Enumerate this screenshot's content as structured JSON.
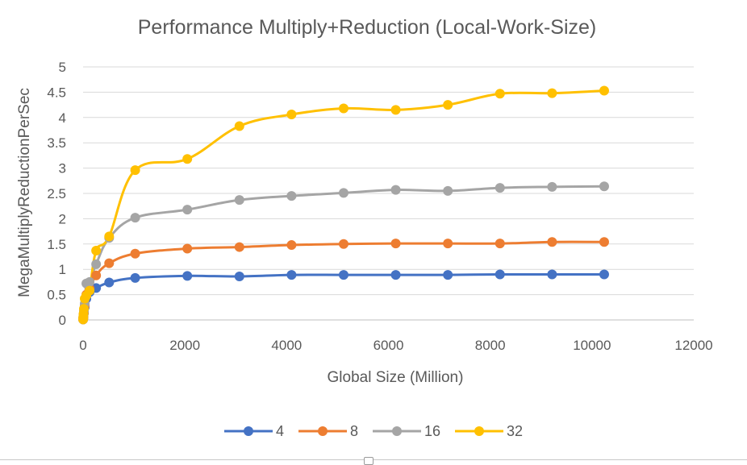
{
  "chart_data": {
    "type": "line",
    "title": "Performance Multiply+Reduction (Local-Work-Size)",
    "xlabel": "Global Size (Million)",
    "ylabel": "MegaMultiplyReductionPerSec",
    "xlim": [
      0,
      12000
    ],
    "ylim": [
      0,
      5
    ],
    "xticks": [
      0,
      2000,
      4000,
      6000,
      8000,
      10000,
      12000
    ],
    "yticks": [
      0,
      0.5,
      1,
      1.5,
      2,
      2.5,
      3,
      3.5,
      4,
      4.5,
      5
    ],
    "grid": true,
    "legend_position": "bottom",
    "x": [
      1,
      2,
      4,
      8,
      16,
      32,
      64,
      128,
      256,
      512,
      1024,
      2048,
      3072,
      4096,
      5120,
      6144,
      7168,
      8192,
      9216,
      10240
    ],
    "series": [
      {
        "name": "4",
        "color": "#4472c4",
        "values": [
          0.01,
          0.02,
          0.04,
          0.07,
          0.13,
          0.25,
          0.42,
          0.55,
          0.63,
          0.74,
          0.83,
          0.87,
          0.86,
          0.89,
          0.89,
          0.89,
          0.89,
          0.9,
          0.9,
          0.9
        ]
      },
      {
        "name": "8",
        "color": "#ed7d31",
        "values": [
          0.01,
          0.02,
          0.04,
          0.08,
          0.15,
          0.28,
          0.5,
          0.62,
          0.88,
          1.12,
          1.31,
          1.41,
          1.44,
          1.48,
          1.5,
          1.51,
          1.51,
          1.51,
          1.54,
          1.54
        ]
      },
      {
        "name": "16",
        "color": "#a5a5a5",
        "values": [
          0.01,
          0.02,
          0.05,
          0.1,
          0.18,
          0.32,
          0.72,
          0.75,
          1.1,
          1.62,
          2.02,
          2.18,
          2.37,
          2.45,
          2.51,
          2.57,
          2.55,
          2.61,
          2.63,
          2.64
        ]
      },
      {
        "name": "32",
        "color": "#ffc000",
        "values": [
          0.01,
          0.03,
          0.06,
          0.12,
          0.22,
          0.42,
          0.48,
          0.58,
          1.37,
          1.65,
          2.96,
          3.18,
          3.83,
          4.06,
          4.18,
          4.15,
          4.25,
          4.47,
          4.48,
          4.53
        ]
      }
    ]
  }
}
